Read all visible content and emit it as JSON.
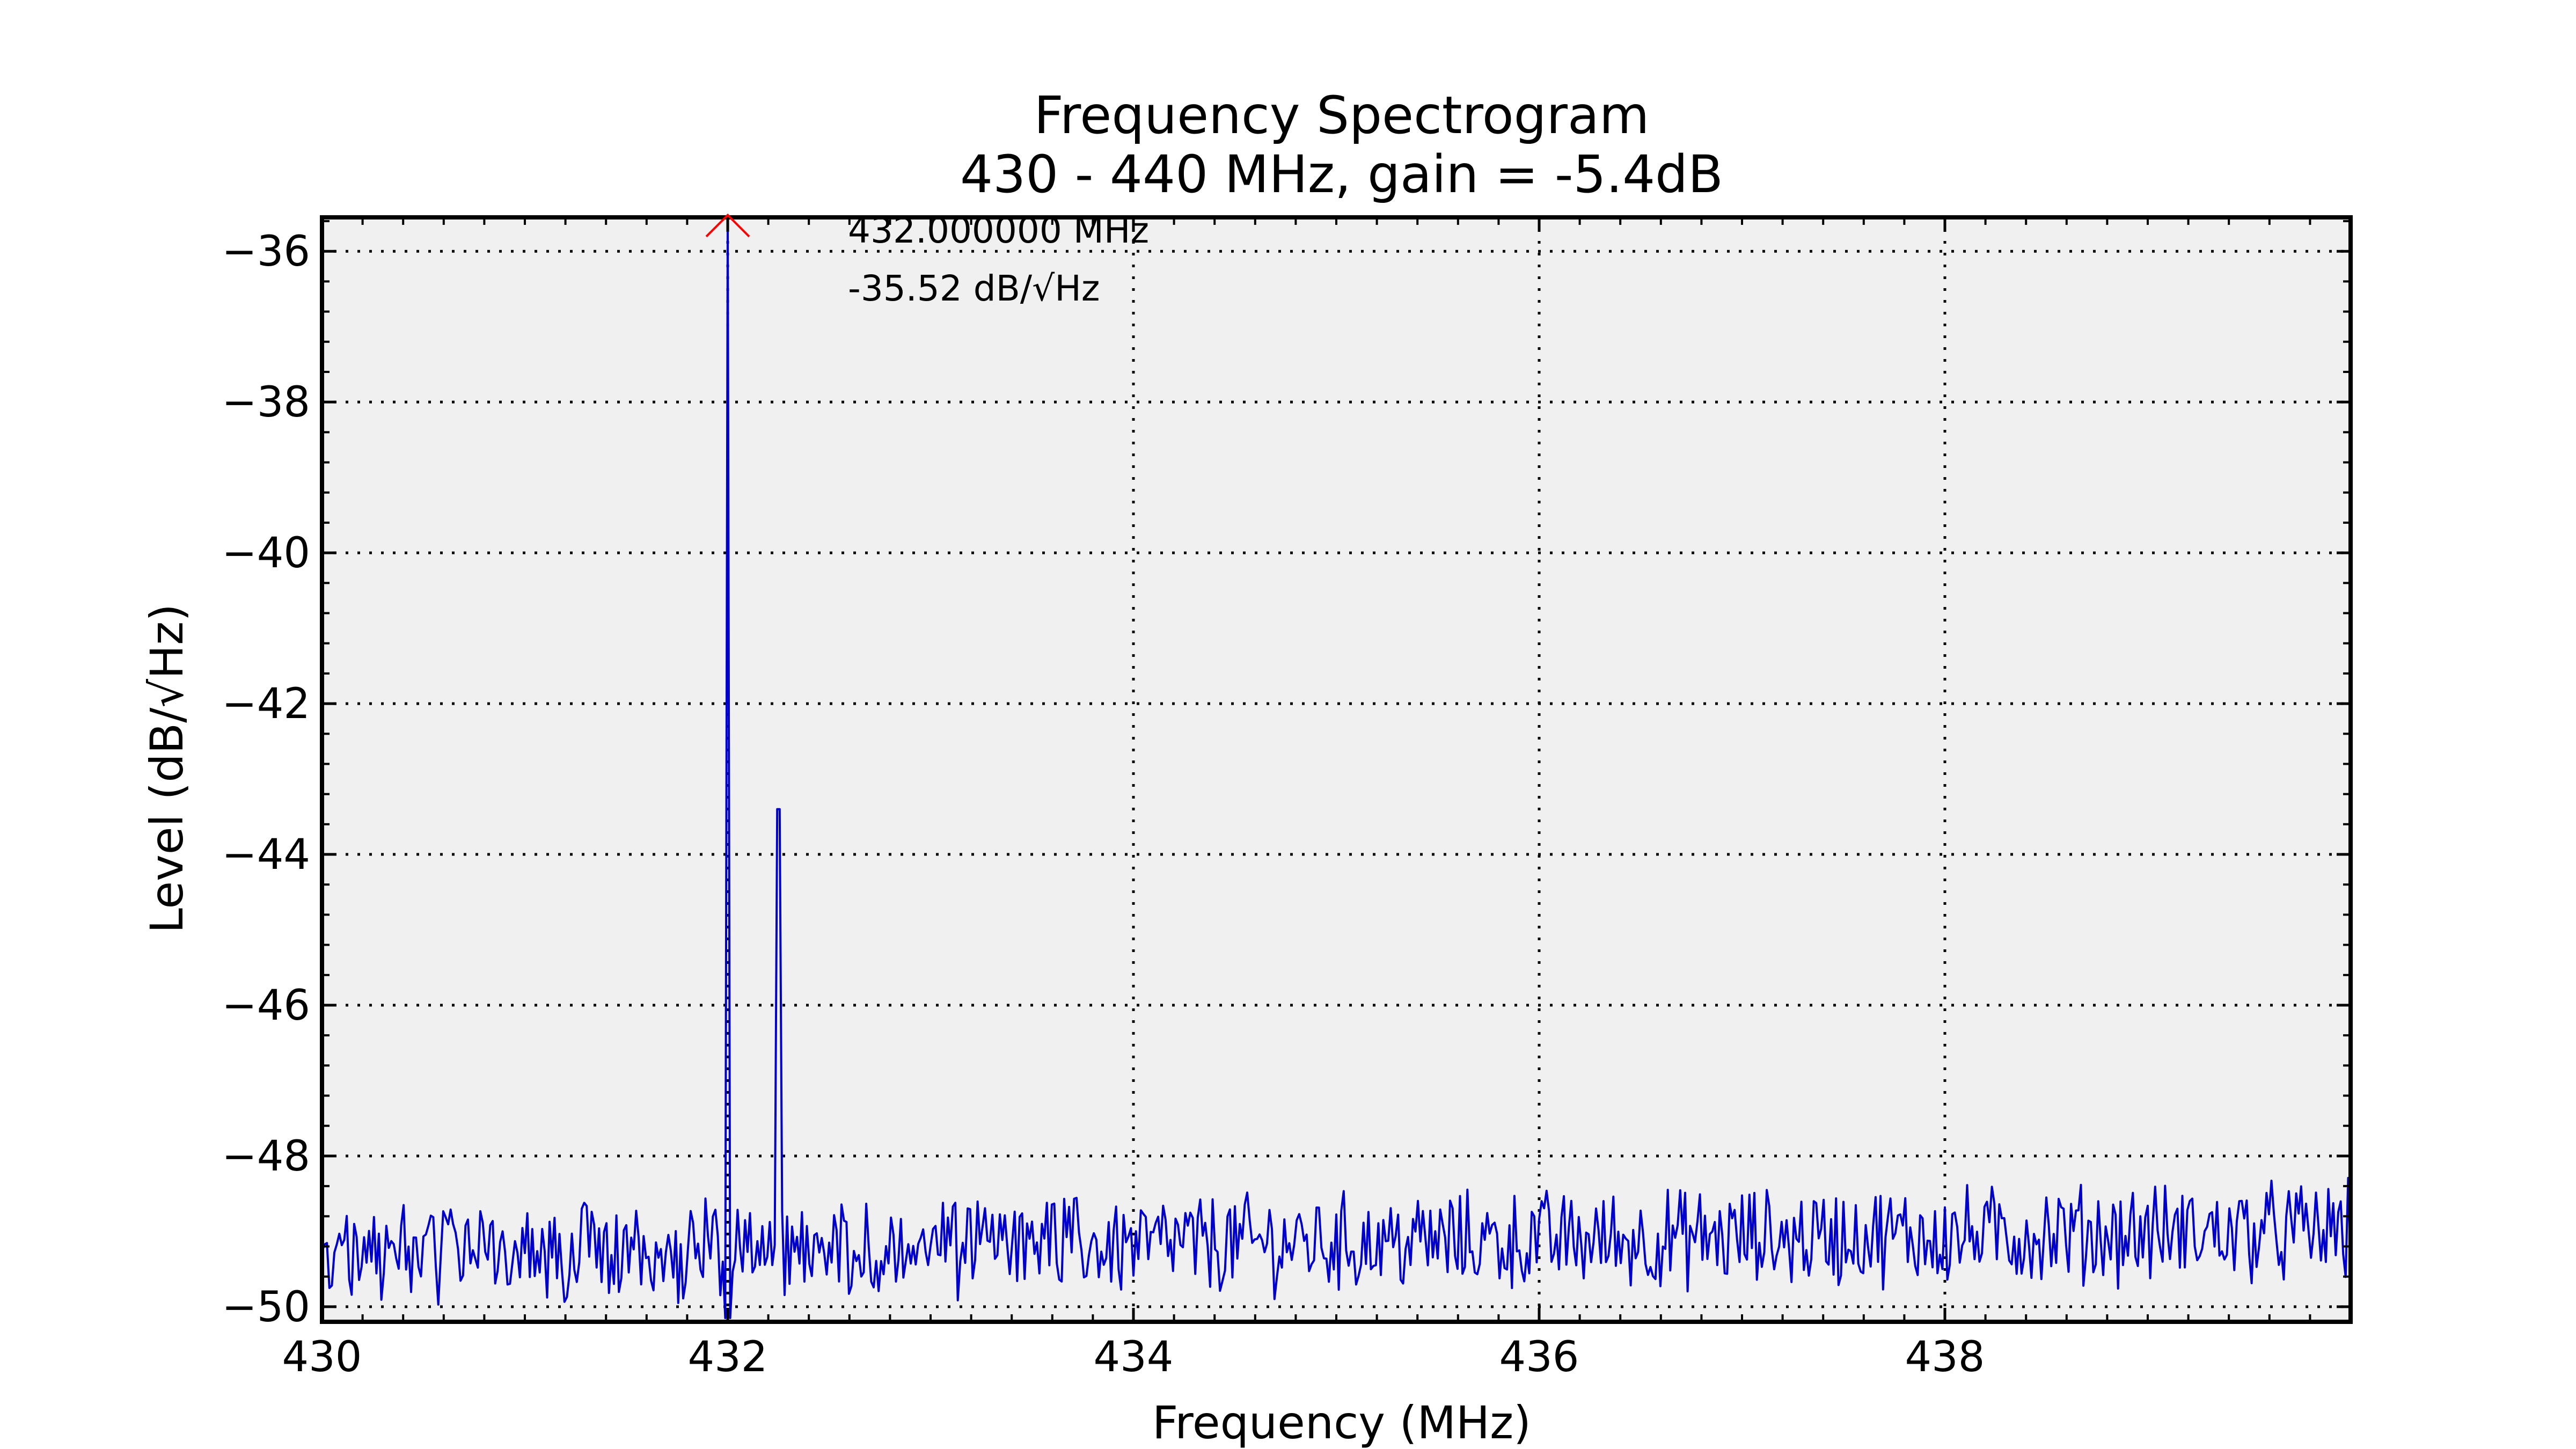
{
  "chart_data": {
    "type": "line",
    "title": "Frequency Spectrogram",
    "subtitle": "430 - 440 MHz, gain = -5.4dB",
    "xlabel": "Frequency (MHz)",
    "ylabel": "Level (dB/√Hz)",
    "xlim": [
      430,
      440
    ],
    "ylim": [
      -50.2,
      -35.55
    ],
    "x_ticks": [
      430,
      432,
      434,
      436,
      438
    ],
    "y_ticks": [
      -36,
      -38,
      -40,
      -42,
      -44,
      -46,
      -48,
      -50
    ],
    "x_tick_labels": [
      "430",
      "432",
      "434",
      "436",
      "438"
    ],
    "y_tick_labels": [
      "−36",
      "−38",
      "−40",
      "−42",
      "−44",
      "−46",
      "−48",
      "−50"
    ],
    "grid": true,
    "line_color": "#0000cc",
    "marker_color": "#ff0000",
    "peak": {
      "x": 432.0,
      "y": -35.52
    },
    "spurs": [
      {
        "x": 432.25,
        "y": -43.4
      }
    ],
    "annotation": {
      "line1": "432.000000 MHz",
      "line2": "-35.52 dB/√Hz"
    },
    "series": [
      {
        "noise_floor_start": -49.3,
        "noise_floor_end": -49.0
      }
    ]
  }
}
